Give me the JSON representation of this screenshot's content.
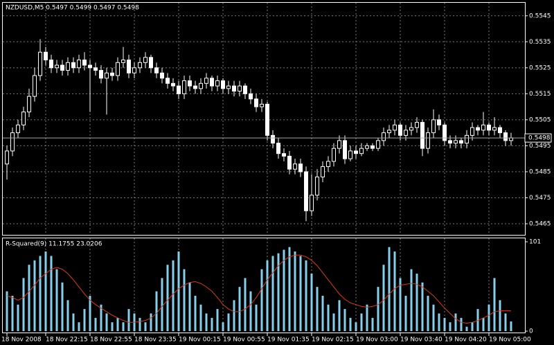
{
  "chart_data": [
    {
      "type": "candlestick",
      "title": "NZDUSD,M5  0.5497 0.5499 0.5497 0.5498",
      "ylim": [
        0.5461,
        0.555
      ],
      "yticks": [
        0.5545,
        0.5535,
        0.5525,
        0.5515,
        0.5505,
        0.5495,
        0.5485,
        0.5475,
        0.5465
      ],
      "grid": true,
      "bid": 0.5498,
      "up_color": "#000000",
      "down_color": "#ffffff",
      "wick_color": "#ffffff",
      "doji_color": "#00c000",
      "grid_color": "#7a7a7a",
      "open": [
        0.5488,
        0.5493,
        0.55,
        0.5503,
        0.5508,
        0.5514,
        0.5522,
        0.5531,
        0.5528,
        0.5525,
        0.5526,
        0.5524,
        0.5527,
        0.5525,
        0.5528,
        0.5526,
        0.5525,
        0.5524,
        0.5521,
        0.5523,
        0.5522,
        0.5527,
        0.5528,
        0.5523,
        0.5525,
        0.5527,
        0.5529,
        0.5525,
        0.5523,
        0.5521,
        0.5519,
        0.5518,
        0.5515,
        0.552,
        0.5518,
        0.5517,
        0.5519,
        0.5521,
        0.5518,
        0.552,
        0.5517,
        0.5518,
        0.5516,
        0.5518,
        0.5515,
        0.5513,
        0.551,
        0.5511,
        0.5499,
        0.5496,
        0.5492,
        0.5491,
        0.5486,
        0.5488,
        0.5485,
        0.547,
        0.5476,
        0.5483,
        0.5487,
        0.5489,
        0.5494,
        0.5497,
        0.549,
        0.5493,
        0.5492,
        0.5494,
        0.5495,
        0.5494,
        0.5497,
        0.55,
        0.5501,
        0.5503,
        0.5499,
        0.5501,
        0.5502,
        0.5504,
        0.5494,
        0.55,
        0.5505,
        0.5503,
        0.5497,
        0.5496,
        0.5497,
        0.5496,
        0.5499,
        0.5502,
        0.5501,
        0.5503,
        0.5501,
        0.5502,
        0.55,
        0.5497
      ],
      "high": [
        0.5495,
        0.5502,
        0.5505,
        0.551,
        0.5517,
        0.5525,
        0.5536,
        0.5533,
        0.553,
        0.5528,
        0.5528,
        0.5529,
        0.5529,
        0.553,
        0.5531,
        0.5528,
        0.5527,
        0.5526,
        0.5525,
        0.5525,
        0.5529,
        0.5533,
        0.553,
        0.5527,
        0.5529,
        0.5531,
        0.553,
        0.5527,
        0.5525,
        0.5523,
        0.5521,
        0.552,
        0.5522,
        0.5522,
        0.552,
        0.5521,
        0.5523,
        0.5522,
        0.5522,
        0.5521,
        0.552,
        0.552,
        0.552,
        0.5519,
        0.5517,
        0.5515,
        0.5513,
        0.5512,
        0.5501,
        0.5498,
        0.5494,
        0.5493,
        0.549,
        0.549,
        0.5487,
        0.5484,
        0.5486,
        0.5489,
        0.5491,
        0.5496,
        0.5499,
        0.5499,
        0.5495,
        0.5495,
        0.5496,
        0.5496,
        0.5496,
        0.5498,
        0.5502,
        0.5503,
        0.5505,
        0.5504,
        0.5503,
        0.5504,
        0.5506,
        0.5505,
        0.5502,
        0.5509,
        0.5507,
        0.5504,
        0.5499,
        0.5499,
        0.5498,
        0.5501,
        0.5504,
        0.5503,
        0.5508,
        0.5504,
        0.5506,
        0.5503,
        0.5501,
        0.55
      ],
      "low": [
        0.5482,
        0.5491,
        0.5498,
        0.5501,
        0.5506,
        0.5512,
        0.552,
        0.5526,
        0.5523,
        0.5523,
        0.5522,
        0.5522,
        0.5523,
        0.5523,
        0.5524,
        0.5508,
        0.5522,
        0.5519,
        0.5507,
        0.552,
        0.552,
        0.5525,
        0.5521,
        0.5521,
        0.5523,
        0.5525,
        0.5523,
        0.5521,
        0.5519,
        0.5517,
        0.5516,
        0.5513,
        0.5513,
        0.5516,
        0.5515,
        0.5515,
        0.5517,
        0.5516,
        0.5516,
        0.5515,
        0.5515,
        0.5514,
        0.5514,
        0.5513,
        0.5511,
        0.5508,
        0.5508,
        0.5497,
        0.5494,
        0.549,
        0.5489,
        0.5484,
        0.5484,
        0.5483,
        0.5466,
        0.5468,
        0.5474,
        0.5481,
        0.5485,
        0.5487,
        0.5492,
        0.5488,
        0.5489,
        0.549,
        0.5491,
        0.5493,
        0.5493,
        0.5493,
        0.5495,
        0.5498,
        0.5499,
        0.5497,
        0.5497,
        0.5499,
        0.55,
        0.5491,
        0.5492,
        0.5498,
        0.5501,
        0.5495,
        0.5494,
        0.5494,
        0.5494,
        0.5494,
        0.5497,
        0.5499,
        0.5499,
        0.5499,
        0.5499,
        0.5498,
        0.5495,
        0.5495
      ],
      "close": [
        0.5493,
        0.55,
        0.5503,
        0.5508,
        0.5514,
        0.5522,
        0.5531,
        0.5528,
        0.5525,
        0.5526,
        0.5524,
        0.5527,
        0.5525,
        0.5528,
        0.5526,
        0.5525,
        0.5524,
        0.5521,
        0.5523,
        0.5522,
        0.5527,
        0.5528,
        0.5523,
        0.5525,
        0.5527,
        0.5529,
        0.5525,
        0.5523,
        0.5521,
        0.5519,
        0.5518,
        0.5515,
        0.552,
        0.5518,
        0.5517,
        0.5519,
        0.5521,
        0.5518,
        0.552,
        0.5517,
        0.5518,
        0.5516,
        0.5518,
        0.5515,
        0.5513,
        0.551,
        0.5511,
        0.5499,
        0.5496,
        0.5492,
        0.5491,
        0.5486,
        0.5488,
        0.5485,
        0.547,
        0.5476,
        0.5483,
        0.5487,
        0.5489,
        0.5494,
        0.5497,
        0.549,
        0.5493,
        0.5492,
        0.5494,
        0.5495,
        0.5494,
        0.5497,
        0.55,
        0.5501,
        0.5503,
        0.5499,
        0.5501,
        0.5502,
        0.5504,
        0.5494,
        0.55,
        0.5505,
        0.5503,
        0.5497,
        0.5496,
        0.5497,
        0.5496,
        0.5499,
        0.5502,
        0.5501,
        0.5503,
        0.5501,
        0.5502,
        0.55,
        0.5497,
        0.5498
      ]
    },
    {
      "type": "bar",
      "title": "R-Squared(9) 11.1755 23.0206",
      "ylim": [
        0,
        101
      ],
      "yticks": [
        101,
        0
      ],
      "categories": [
        "18 Nov 2008",
        null,
        null,
        null,
        null,
        null,
        null,
        "18 Nov 22:15",
        null,
        null,
        null,
        null,
        null,
        null,
        null,
        "18 Nov 22:55",
        null,
        null,
        null,
        null,
        null,
        null,
        null,
        "18 Nov 23:35",
        null,
        null,
        null,
        null,
        null,
        null,
        null,
        "19 Nov 00:15",
        null,
        null,
        null,
        null,
        null,
        null,
        null,
        "19 Nov 00:55",
        null,
        null,
        null,
        null,
        null,
        null,
        null,
        "19 Nov 01:35",
        null,
        null,
        null,
        null,
        null,
        null,
        null,
        "19 Nov 02:15",
        null,
        null,
        null,
        null,
        null,
        null,
        null,
        "19 Nov 03:00",
        null,
        null,
        null,
        null,
        null,
        null,
        null,
        "19 Nov 03:40",
        null,
        null,
        null,
        null,
        null,
        null,
        null,
        "19 Nov 04:20",
        null,
        null,
        null,
        null,
        null,
        null,
        null,
        "19 Nov 05:00",
        null,
        null,
        null,
        null
      ],
      "series": [
        {
          "type": "bar",
          "color": "#87ceeb",
          "values": [
            45,
            40,
            30,
            60,
            75,
            80,
            85,
            90,
            85,
            70,
            55,
            35,
            20,
            10,
            25,
            40,
            15,
            30,
            20,
            10,
            15,
            10,
            25,
            20,
            15,
            10,
            20,
            45,
            60,
            75,
            80,
            90,
            70,
            55,
            40,
            30,
            20,
            15,
            25,
            10,
            20,
            35,
            50,
            60,
            45,
            30,
            70,
            80,
            85,
            88,
            92,
            95,
            90,
            85,
            80,
            65,
            50,
            40,
            30,
            20,
            35,
            25,
            15,
            10,
            20,
            30,
            15,
            50,
            75,
            95,
            90,
            60,
            40,
            70,
            65,
            55,
            40,
            30,
            20,
            15,
            10,
            20,
            15,
            5,
            10,
            25,
            15,
            30,
            60,
            35,
            20,
            11
          ]
        },
        {
          "type": "line",
          "color": "#d83c1c",
          "values": [
            40,
            38,
            35,
            38,
            45,
            52,
            60,
            65,
            70,
            72,
            70,
            65,
            58,
            50,
            42,
            35,
            30,
            26,
            22,
            18,
            15,
            12,
            10,
            10,
            11,
            12,
            15,
            20,
            28,
            35,
            42,
            48,
            52,
            55,
            56,
            54,
            50,
            45,
            38,
            30,
            25,
            22,
            22,
            25,
            30,
            38,
            48,
            58,
            66,
            74,
            80,
            84,
            86,
            86,
            84,
            80,
            74,
            66,
            58,
            50,
            42,
            36,
            32,
            30,
            28,
            27,
            28,
            30,
            35,
            42,
            48,
            52,
            53,
            54,
            53,
            50,
            45,
            40,
            33,
            26,
            20,
            14,
            10,
            9,
            10,
            12,
            15,
            18,
            22,
            23,
            23,
            23
          ]
        }
      ]
    }
  ]
}
